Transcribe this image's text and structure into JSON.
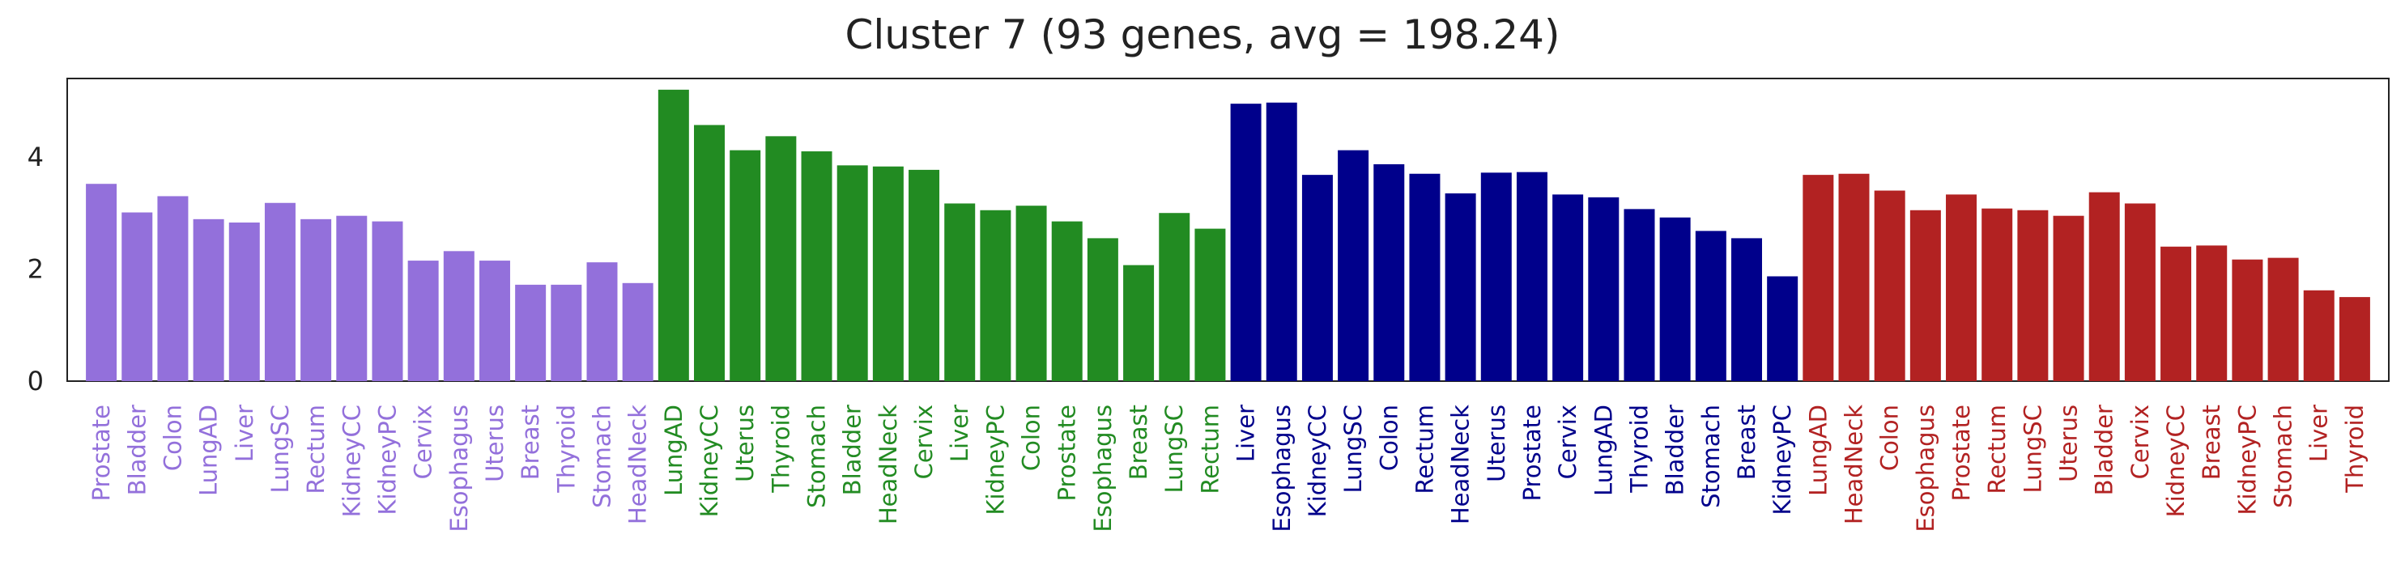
{
  "chart_data": {
    "type": "bar",
    "title": "Cluster 7 (93 genes,  avg = 198.24)",
    "xlabel": "",
    "ylabel": "",
    "ylim": [
      0,
      5.4
    ],
    "yticks": [
      0,
      2,
      4
    ],
    "grid": false,
    "legend": "none",
    "categories": [
      "Prostate",
      "Bladder",
      "Colon",
      "LungAD",
      "Liver",
      "LungSC",
      "Rectum",
      "KidneyCC",
      "KidneyPC",
      "Cervix",
      "Esophagus",
      "Uterus",
      "Breast",
      "Thyroid",
      "Stomach",
      "HeadNeck",
      "LungAD",
      "KidneyCC",
      "Uterus",
      "Thyroid",
      "Stomach",
      "Bladder",
      "HeadNeck",
      "Cervix",
      "Liver",
      "KidneyPC",
      "Colon",
      "Prostate",
      "Esophagus",
      "Breast",
      "LungSC",
      "Rectum",
      "Liver",
      "Esophagus",
      "KidneyCC",
      "LungSC",
      "Colon",
      "Rectum",
      "HeadNeck",
      "Uterus",
      "Prostate",
      "Cervix",
      "LungAD",
      "Thyroid",
      "Bladder",
      "Stomach",
      "Breast",
      "KidneyPC",
      "LungAD",
      "HeadNeck",
      "Colon",
      "Esophagus",
      "Prostate",
      "Rectum",
      "LungSC",
      "Uterus",
      "Bladder",
      "Cervix",
      "KidneyCC",
      "Breast",
      "KidneyPC",
      "Stomach",
      "Liver",
      "Thyroid"
    ],
    "values": [
      3.52,
      3.01,
      3.3,
      2.89,
      2.83,
      3.18,
      2.89,
      2.95,
      2.85,
      2.15,
      2.32,
      2.15,
      1.72,
      1.72,
      2.12,
      1.75,
      5.2,
      4.57,
      4.12,
      4.37,
      4.1,
      3.85,
      3.83,
      3.77,
      3.17,
      3.05,
      3.13,
      2.85,
      2.55,
      2.07,
      3.0,
      2.72,
      4.95,
      4.97,
      3.68,
      4.12,
      3.87,
      3.7,
      3.35,
      3.72,
      3.73,
      3.33,
      3.28,
      3.07,
      2.92,
      2.68,
      2.55,
      1.87,
      3.68,
      3.7,
      3.4,
      3.05,
      3.33,
      3.08,
      3.05,
      2.95,
      3.37,
      3.17,
      2.4,
      2.42,
      2.17,
      2.2,
      1.62,
      1.5
    ],
    "groups": [
      {
        "color": "#9370DB",
        "count": 16
      },
      {
        "color": "#228B22",
        "count": 16
      },
      {
        "color": "#00008B",
        "count": 16
      },
      {
        "color": "#B22222",
        "count": 16
      }
    ]
  }
}
